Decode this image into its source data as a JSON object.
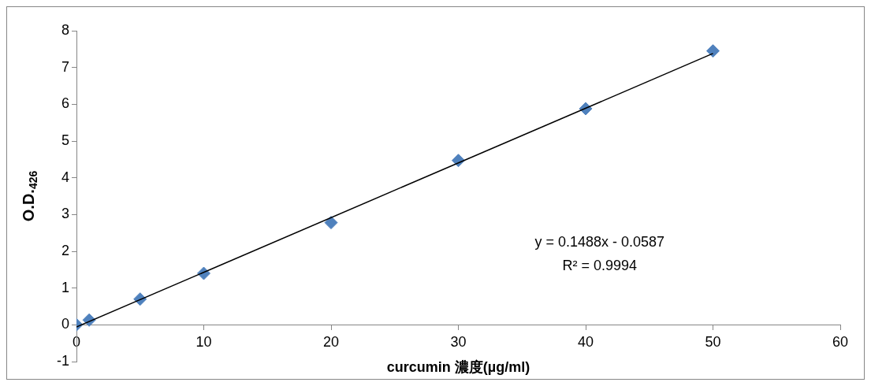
{
  "chart_data": {
    "type": "scatter",
    "xlabel": "curcumin 濃度(µg/ml)",
    "ylabel": "O.D.$_{426}$",
    "xlim": [
      0,
      60
    ],
    "xticks": [
      0,
      10,
      20,
      30,
      40,
      50,
      60
    ],
    "ylim": [
      -1,
      8
    ],
    "yticks": [
      -1,
      0,
      1,
      2,
      3,
      4,
      5,
      6,
      7,
      8
    ],
    "series": [
      {
        "type": "scatter",
        "color": "#4f81bd",
        "marker": "diamond",
        "x": [
          0,
          1,
          5,
          10,
          20,
          30,
          40,
          50
        ],
        "values": [
          0,
          0.13,
          0.7,
          1.4,
          2.78,
          4.47,
          5.88,
          7.45
        ]
      },
      {
        "type": "line",
        "color": "#000000",
        "marker": "none",
        "x": [
          0,
          50
        ],
        "values": [
          -0.06,
          7.38
        ]
      }
    ],
    "annotations": [
      "y = 0.1488x - 0.0587",
      "R² = 0.9994"
    ]
  }
}
